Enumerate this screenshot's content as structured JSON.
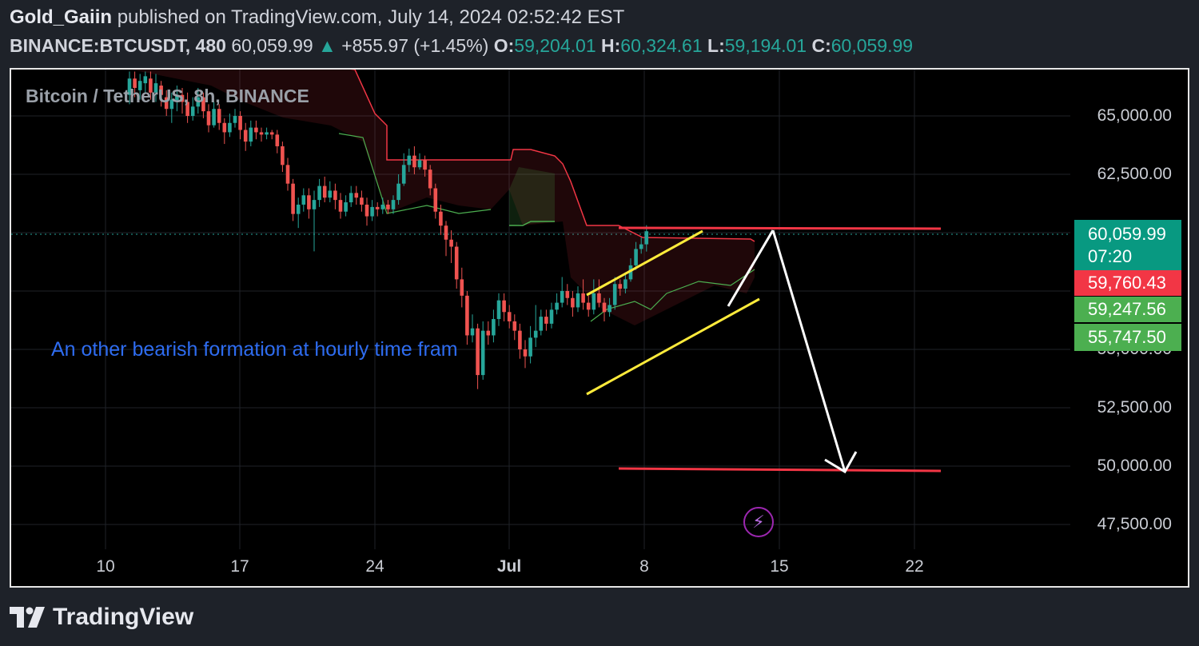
{
  "header": {
    "author": "Gold_Gaiin",
    "published_text": "published on TradingView.com, July 14, 2024 02:52:42 EST",
    "symbol": "BINANCE:BTCUSDT, 480",
    "price": "60,059.99",
    "change": "+855.97 (+1.45%)",
    "o_label": "O:",
    "o_value": "59,204.01",
    "h_label": "H:",
    "h_value": "60,324.61",
    "l_label": "L:",
    "l_value": "59,194.01",
    "c_label": "C:",
    "c_value": "60,059.99"
  },
  "chart": {
    "legend": "Bitcoin / TetherUS, 8h, BINANCE",
    "annotation": "An other bearish formation at hourly time fram",
    "y_ticks": [
      "65,000.00",
      "62,500.00",
      "52,500.00",
      "50,000.00",
      "47,500.00"
    ],
    "y_tick_hidden": "55,000.00",
    "x_ticks": [
      "10",
      "17",
      "24",
      "Jul",
      "8",
      "15",
      "22"
    ],
    "price_labels": {
      "current": "60,059.99",
      "countdown": "07:20",
      "red": "59,760.43",
      "green1": "59,247.56",
      "green2": "55,747.50"
    },
    "colors": {
      "up": "#26a69a",
      "down": "#ef5350",
      "note": "#2e6cf0",
      "channel": "#ffeb3b"
    }
  },
  "chart_data": {
    "type": "candlestick",
    "symbol": "BINANCE:BTCUSDT",
    "interval": "8h",
    "ylim": [
      46500,
      67000
    ],
    "x_ticks": [
      "10",
      "17",
      "24",
      "Jul",
      "8",
      "15",
      "22"
    ],
    "last_price": 60059.99,
    "support_target": 50000,
    "resistance": 60450
  },
  "footer": {
    "brand": "TradingView"
  }
}
